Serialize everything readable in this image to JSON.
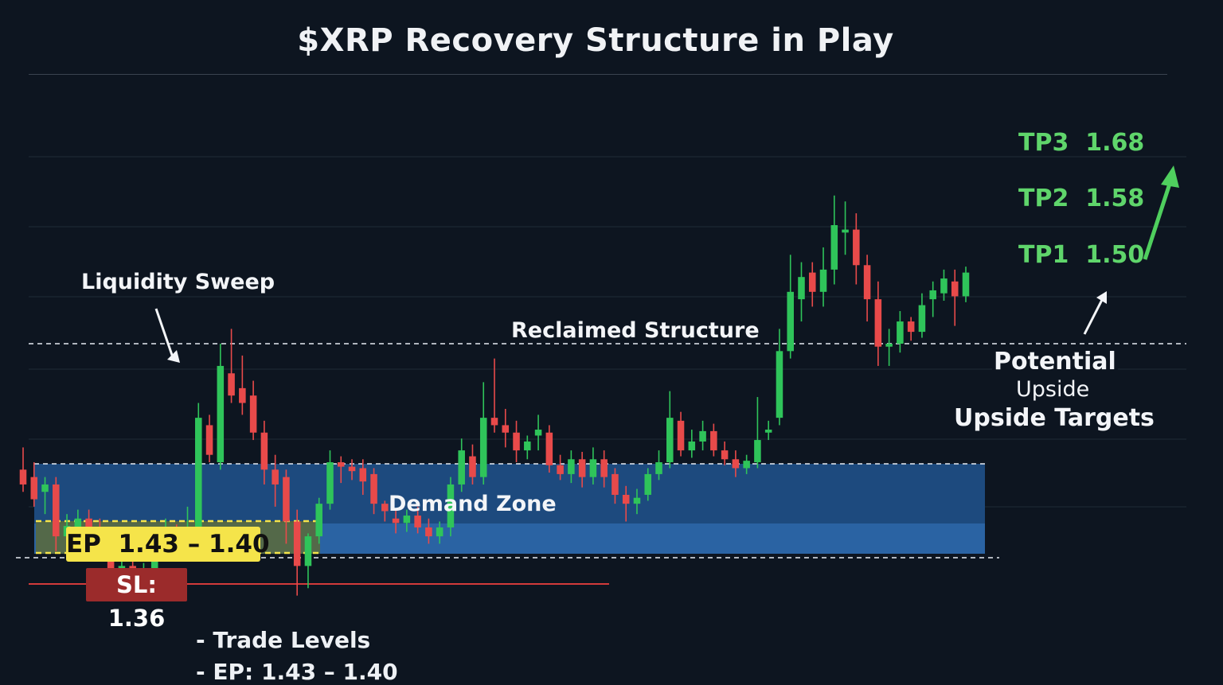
{
  "title": "$XRP Recovery Structure in Play",
  "annotations": {
    "liquidity_sweep": "Liquidity Sweep",
    "reclaimed_structure": "Reclaimed Structure",
    "demand_zone": "Demand Zone",
    "potential": "Potential",
    "upside": "Upside",
    "upside_targets": "Upside Targets"
  },
  "levels": {
    "tp3": {
      "name": "TP3",
      "value": "1.68",
      "price": 1.68
    },
    "tp2": {
      "name": "TP2",
      "value": "1.58",
      "price": 1.58
    },
    "tp1": {
      "name": "TP1",
      "value": "1.50",
      "price": 1.5
    },
    "ep": {
      "label": "EP  1.43 – 1.40",
      "high": 1.43,
      "low": 1.4
    },
    "sl": {
      "label": "SL: 1.36",
      "price": 1.36
    }
  },
  "footer": {
    "line1": "- Trade Levels",
    "line2": "- EP: 1.43 – 1.40"
  },
  "colors": {
    "background": "#0d1520",
    "bull": "#2fc45a",
    "bear": "#e84a4a",
    "target": "#5fd56b",
    "demand_zone": "#1d4a7e",
    "entry": "#f5e44a",
    "stop": "#9b2b2b"
  },
  "chart_data": {
    "type": "candlestick",
    "title": "$XRP Recovery Structure in Play",
    "y_range": [
      1.34,
      1.72
    ],
    "grid": true,
    "reclaimed_structure_level": 1.48,
    "demand_zone": {
      "low": 1.37,
      "high": 1.44
    },
    "candles": [
      [
        1.395,
        1.385,
        1.41,
        1.38
      ],
      [
        1.39,
        1.375,
        1.4,
        1.37
      ],
      [
        1.38,
        1.385,
        1.39,
        1.365
      ],
      [
        1.385,
        1.35,
        1.39,
        1.34
      ],
      [
        1.35,
        1.357,
        1.365,
        1.338
      ],
      [
        1.352,
        1.362,
        1.368,
        1.345
      ],
      [
        1.362,
        1.355,
        1.368,
        1.338
      ],
      [
        1.355,
        1.345,
        1.362,
        1.335
      ],
      [
        1.345,
        1.325,
        1.35,
        1.315
      ],
      [
        1.325,
        1.33,
        1.335,
        1.318
      ],
      [
        1.33,
        1.322,
        1.336,
        1.315
      ],
      [
        1.322,
        1.328,
        1.332,
        1.313
      ],
      [
        1.328,
        1.345,
        1.356,
        1.322
      ],
      [
        1.34,
        1.352,
        1.362,
        1.335
      ],
      [
        1.352,
        1.345,
        1.358,
        1.335
      ],
      [
        1.342,
        1.35,
        1.37,
        1.338
      ],
      [
        1.35,
        1.43,
        1.44,
        1.345
      ],
      [
        1.425,
        1.405,
        1.432,
        1.4
      ],
      [
        1.4,
        1.465,
        1.48,
        1.395
      ],
      [
        1.46,
        1.445,
        1.49,
        1.44
      ],
      [
        1.45,
        1.44,
        1.472,
        1.432
      ],
      [
        1.445,
        1.42,
        1.455,
        1.415
      ],
      [
        1.42,
        1.395,
        1.428,
        1.385
      ],
      [
        1.395,
        1.385,
        1.405,
        1.37
      ],
      [
        1.39,
        1.36,
        1.395,
        1.345
      ],
      [
        1.36,
        1.33,
        1.368,
        1.31
      ],
      [
        1.33,
        1.35,
        1.352,
        1.315
      ],
      [
        1.35,
        1.372,
        1.376,
        1.345
      ],
      [
        1.372,
        1.4,
        1.408,
        1.368
      ],
      [
        1.4,
        1.397,
        1.404,
        1.386
      ],
      [
        1.397,
        1.394,
        1.402,
        1.388
      ],
      [
        1.396,
        1.387,
        1.402,
        1.378
      ],
      [
        1.392,
        1.372,
        1.396,
        1.365
      ],
      [
        1.372,
        1.367,
        1.374,
        1.36
      ],
      [
        1.362,
        1.359,
        1.368,
        1.352
      ],
      [
        1.359,
        1.364,
        1.368,
        1.353
      ],
      [
        1.364,
        1.356,
        1.37,
        1.352
      ],
      [
        1.356,
        1.35,
        1.362,
        1.345
      ],
      [
        1.35,
        1.356,
        1.36,
        1.345
      ],
      [
        1.356,
        1.385,
        1.39,
        1.35
      ],
      [
        1.385,
        1.408,
        1.416,
        1.38
      ],
      [
        1.404,
        1.39,
        1.412,
        1.385
      ],
      [
        1.39,
        1.43,
        1.454,
        1.385
      ],
      [
        1.43,
        1.425,
        1.47,
        1.42
      ],
      [
        1.425,
        1.42,
        1.436,
        1.41
      ],
      [
        1.42,
        1.408,
        1.428,
        1.4
      ],
      [
        1.408,
        1.414,
        1.418,
        1.402
      ],
      [
        1.418,
        1.422,
        1.432,
        1.408
      ],
      [
        1.42,
        1.398,
        1.425,
        1.393
      ],
      [
        1.398,
        1.392,
        1.405,
        1.388
      ],
      [
        1.392,
        1.402,
        1.408,
        1.386
      ],
      [
        1.402,
        1.39,
        1.407,
        1.383
      ],
      [
        1.39,
        1.402,
        1.41,
        1.385
      ],
      [
        1.402,
        1.39,
        1.408,
        1.383
      ],
      [
        1.392,
        1.378,
        1.396,
        1.372
      ],
      [
        1.378,
        1.372,
        1.384,
        1.36
      ],
      [
        1.372,
        1.376,
        1.382,
        1.365
      ],
      [
        1.378,
        1.392,
        1.396,
        1.374
      ],
      [
        1.392,
        1.4,
        1.408,
        1.388
      ],
      [
        1.4,
        1.43,
        1.448,
        1.396
      ],
      [
        1.428,
        1.408,
        1.434,
        1.404
      ],
      [
        1.408,
        1.414,
        1.422,
        1.403
      ],
      [
        1.414,
        1.421,
        1.428,
        1.408
      ],
      [
        1.421,
        1.408,
        1.426,
        1.404
      ],
      [
        1.408,
        1.402,
        1.414,
        1.398
      ],
      [
        1.402,
        1.396,
        1.408,
        1.39
      ],
      [
        1.396,
        1.401,
        1.405,
        1.392
      ],
      [
        1.4,
        1.415,
        1.444,
        1.396
      ],
      [
        1.42,
        1.422,
        1.428,
        1.415
      ],
      [
        1.43,
        1.475,
        1.49,
        1.425
      ],
      [
        1.475,
        1.515,
        1.54,
        1.47
      ],
      [
        1.51,
        1.525,
        1.535,
        1.495
      ],
      [
        1.528,
        1.515,
        1.535,
        1.505
      ],
      [
        1.515,
        1.53,
        1.545,
        1.505
      ],
      [
        1.53,
        1.56,
        1.58,
        1.52
      ],
      [
        1.555,
        1.557,
        1.576,
        1.54
      ],
      [
        1.557,
        1.533,
        1.568,
        1.52
      ],
      [
        1.533,
        1.51,
        1.54,
        1.495
      ],
      [
        1.51,
        1.478,
        1.522,
        1.465
      ],
      [
        1.478,
        1.48,
        1.49,
        1.465
      ],
      [
        1.48,
        1.495,
        1.502,
        1.474
      ],
      [
        1.495,
        1.488,
        1.498,
        1.482
      ],
      [
        1.488,
        1.506,
        1.514,
        1.484
      ],
      [
        1.51,
        1.516,
        1.522,
        1.498
      ],
      [
        1.514,
        1.524,
        1.53,
        1.509
      ],
      [
        1.522,
        1.512,
        1.53,
        1.492
      ],
      [
        1.512,
        1.528,
        1.532,
        1.508
      ]
    ]
  }
}
